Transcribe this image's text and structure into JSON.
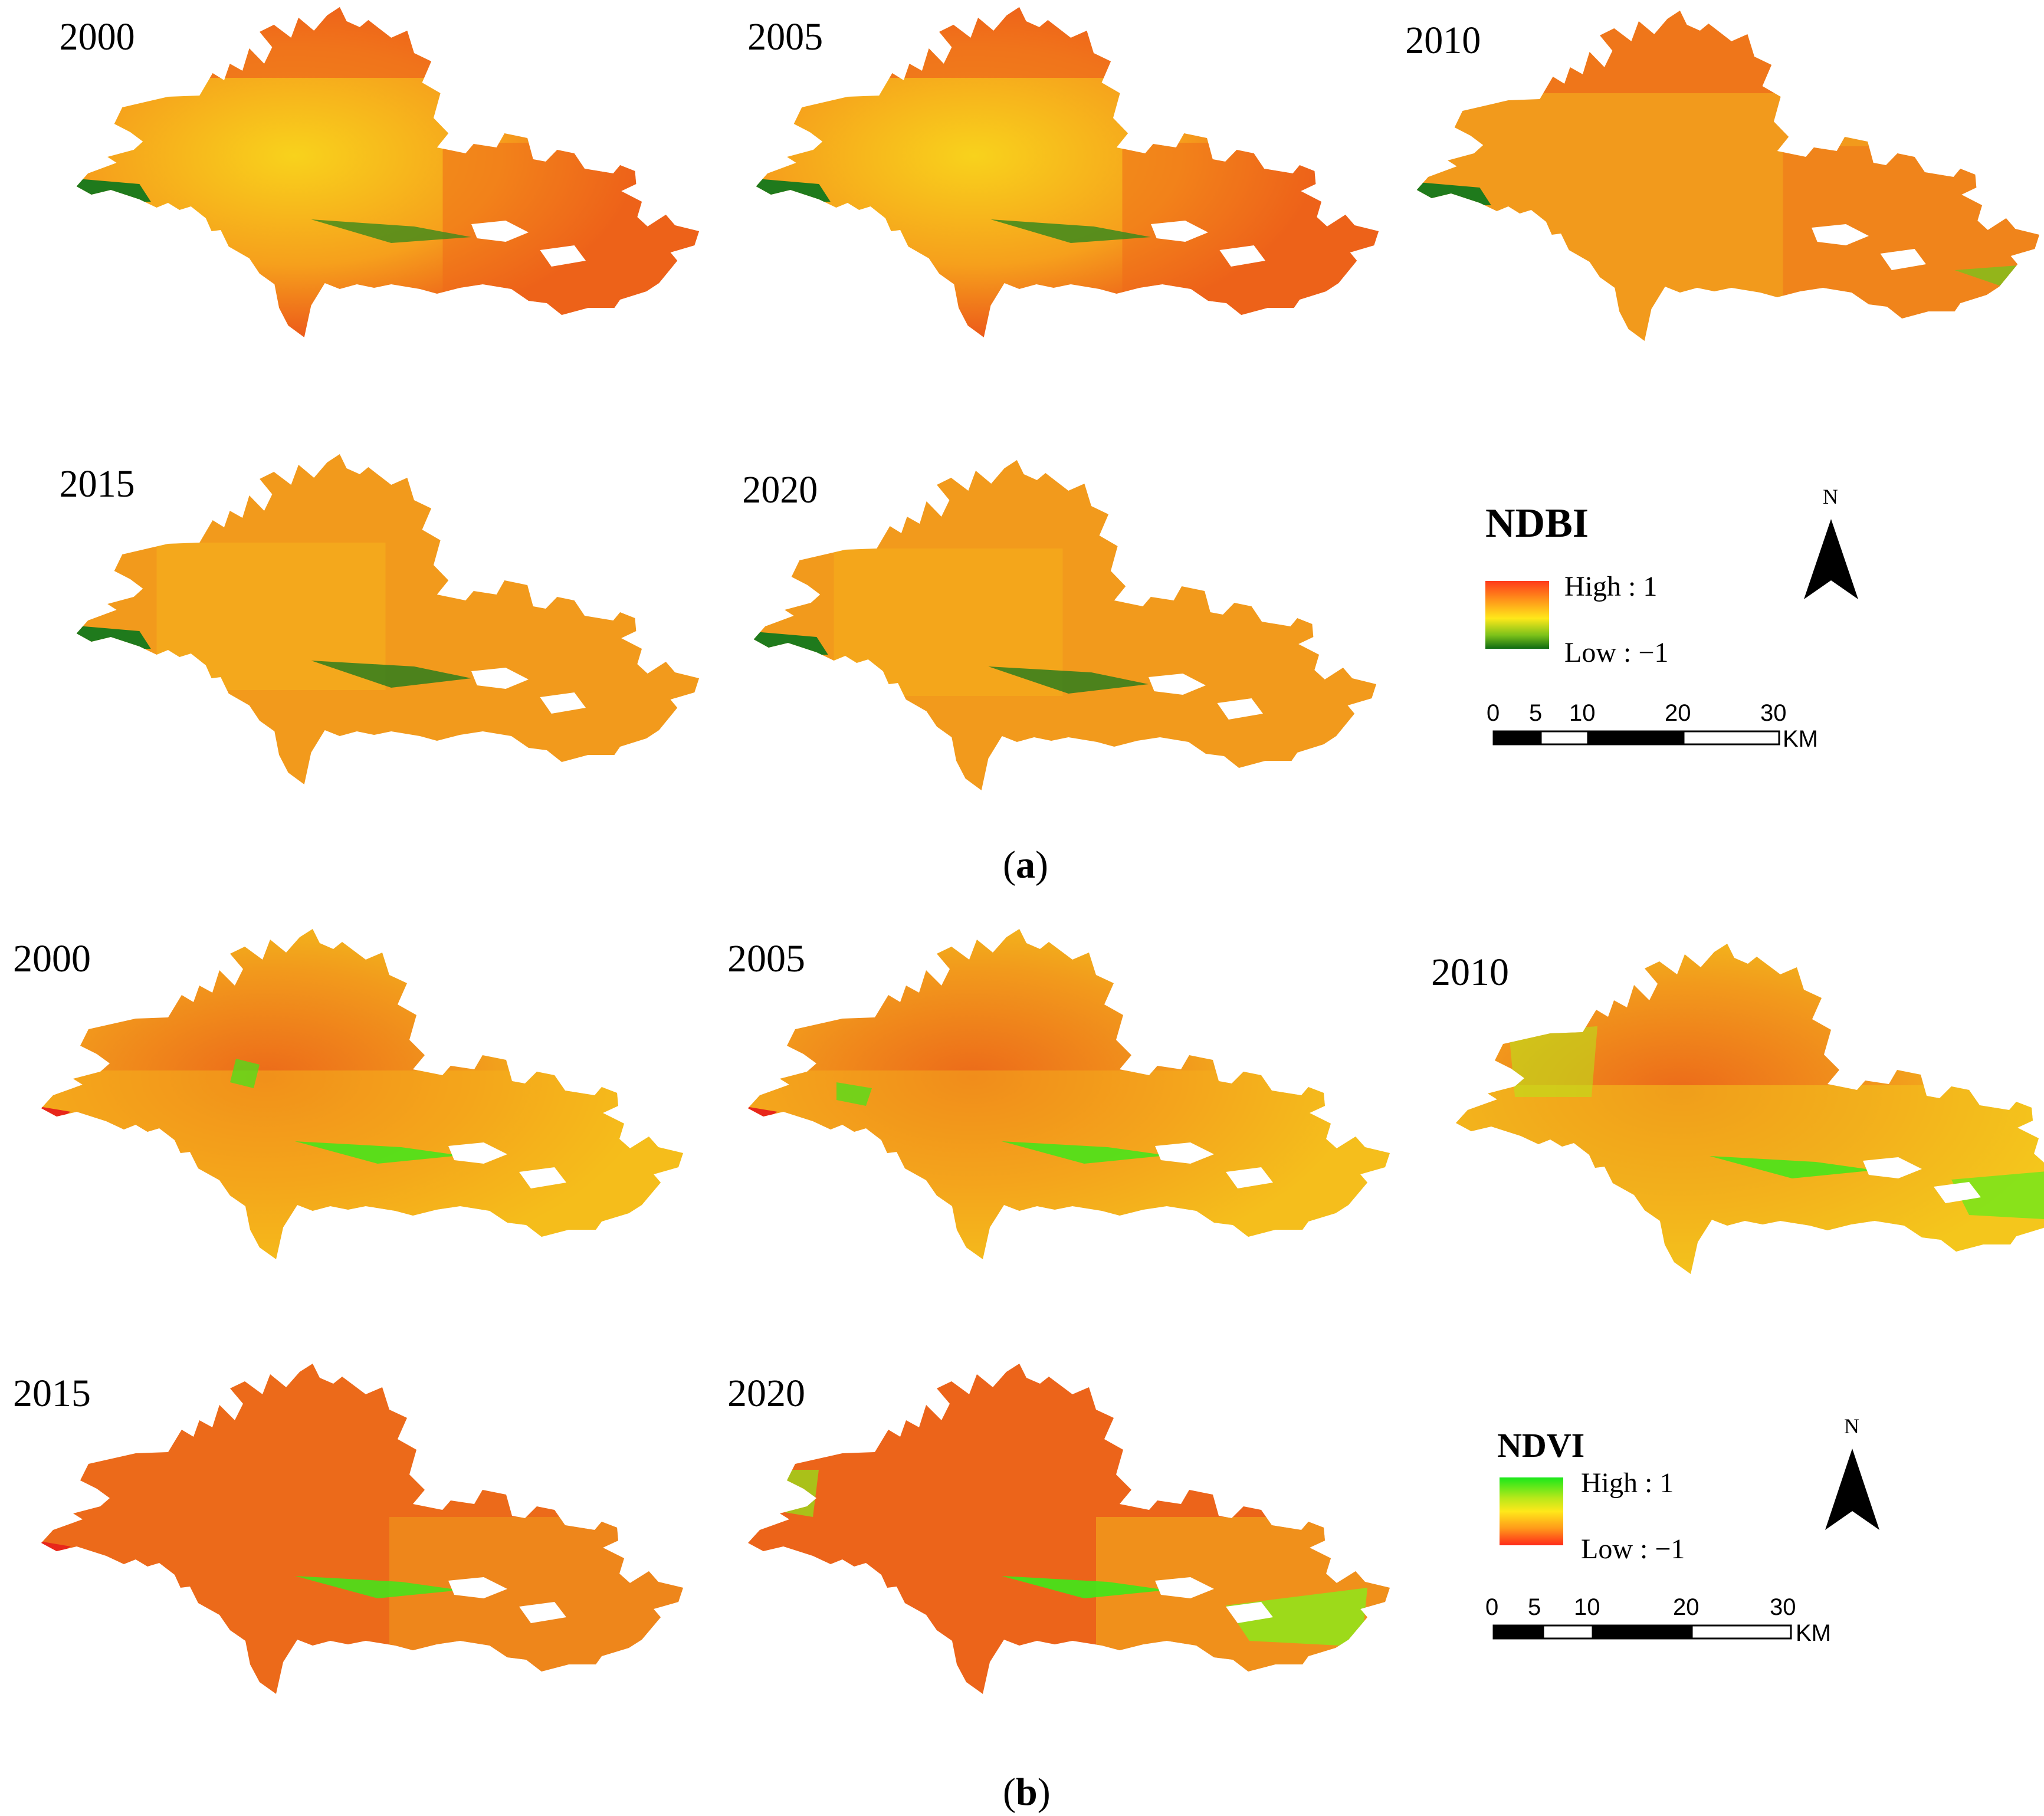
{
  "panel_a": {
    "years": [
      "2000",
      "2005",
      "2010",
      "2015",
      "2020"
    ],
    "legend": {
      "title": "NDBI",
      "high_label": "High : 1",
      "low_label": "Low : −1",
      "colors": [
        "#ff3a1a",
        "#ff9a1a",
        "#ffe81a",
        "#7cc21a",
        "#0f6b12"
      ]
    },
    "north_label": "N",
    "scale": {
      "ticks": [
        "0",
        "5",
        "10",
        "20",
        "30"
      ],
      "unit": "KM"
    },
    "caption_open": "(",
    "caption_letter": "a",
    "caption_close": ")",
    "map_palette": {
      "base": "#f5901c",
      "light": "#f8c21c",
      "dark": "#e8461a",
      "green": "#1f7a1c"
    }
  },
  "panel_b": {
    "years": [
      "2000",
      "2005",
      "2010",
      "2015",
      "2020"
    ],
    "legend": {
      "title": "NDVI",
      "high_label": "High : 1",
      "low_label": "Low : −1",
      "colors": [
        "#19e81a",
        "#b6e81a",
        "#ffe81a",
        "#ff9a1a",
        "#ff2a1a"
      ]
    },
    "north_label": "N",
    "scale": {
      "ticks": [
        "0",
        "5",
        "10",
        "20",
        "30"
      ],
      "unit": "KM"
    },
    "caption_open": "(",
    "caption_letter": "b",
    "caption_close": ")",
    "map_palette": {
      "base": "#f28a1c",
      "light": "#f8cc1c",
      "dark": "#e8461a",
      "green": "#3ee81a"
    }
  }
}
